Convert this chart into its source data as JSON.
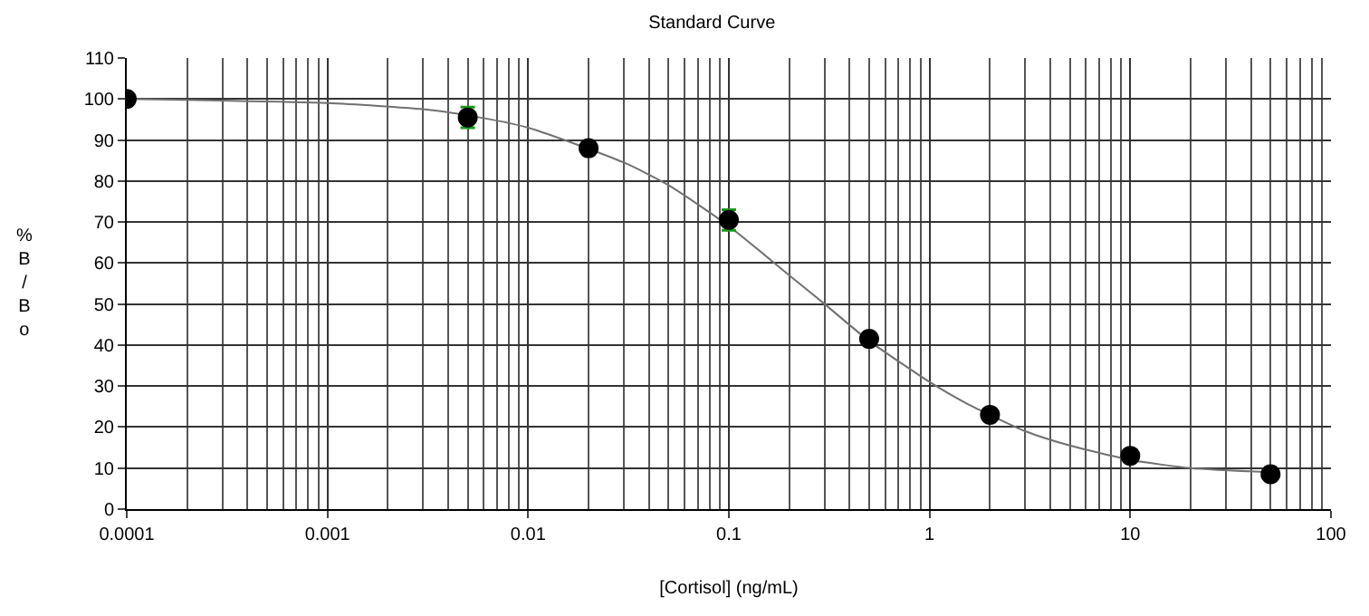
{
  "chart_data": {
    "type": "scatter",
    "title": "Standard Curve",
    "xlabel": "[Cortisol] (ng/mL)",
    "ylabel": "%B/Bo",
    "log": "x",
    "grid": true,
    "xlim": [
      0.0001,
      100
    ],
    "xticks": [
      0.0001,
      0.001,
      0.01,
      0.1,
      1,
      10,
      100
    ],
    "ylim": [
      0,
      110
    ],
    "yticks": [
      0,
      10,
      20,
      30,
      40,
      50,
      60,
      70,
      80,
      90,
      100,
      110
    ],
    "series": [
      {
        "type": "line",
        "color": "#707070",
        "marker": "none",
        "line_style": "solid",
        "x": [
          0.0001,
          0.001,
          0.003,
          0.005,
          0.01,
          0.03,
          0.05,
          0.1,
          0.2,
          0.3,
          0.5,
          1,
          1.5,
          3,
          5,
          10,
          20,
          50
        ],
        "values": [
          100,
          99,
          97.5,
          96,
          93,
          84.5,
          79,
          69,
          57,
          50,
          41,
          31,
          26,
          19,
          15.5,
          12,
          10,
          9
        ]
      },
      {
        "type": "scatter",
        "color": "#000000",
        "marker": "circle",
        "x": [
          0.0001,
          0.005,
          0.02,
          0.1,
          0.5,
          2,
          10,
          50
        ],
        "values": [
          100,
          95.5,
          88,
          70.5,
          41.5,
          23,
          13,
          8.5
        ],
        "errors": [
          null,
          2.5,
          null,
          2.5,
          null,
          null,
          null,
          null
        ]
      }
    ]
  }
}
